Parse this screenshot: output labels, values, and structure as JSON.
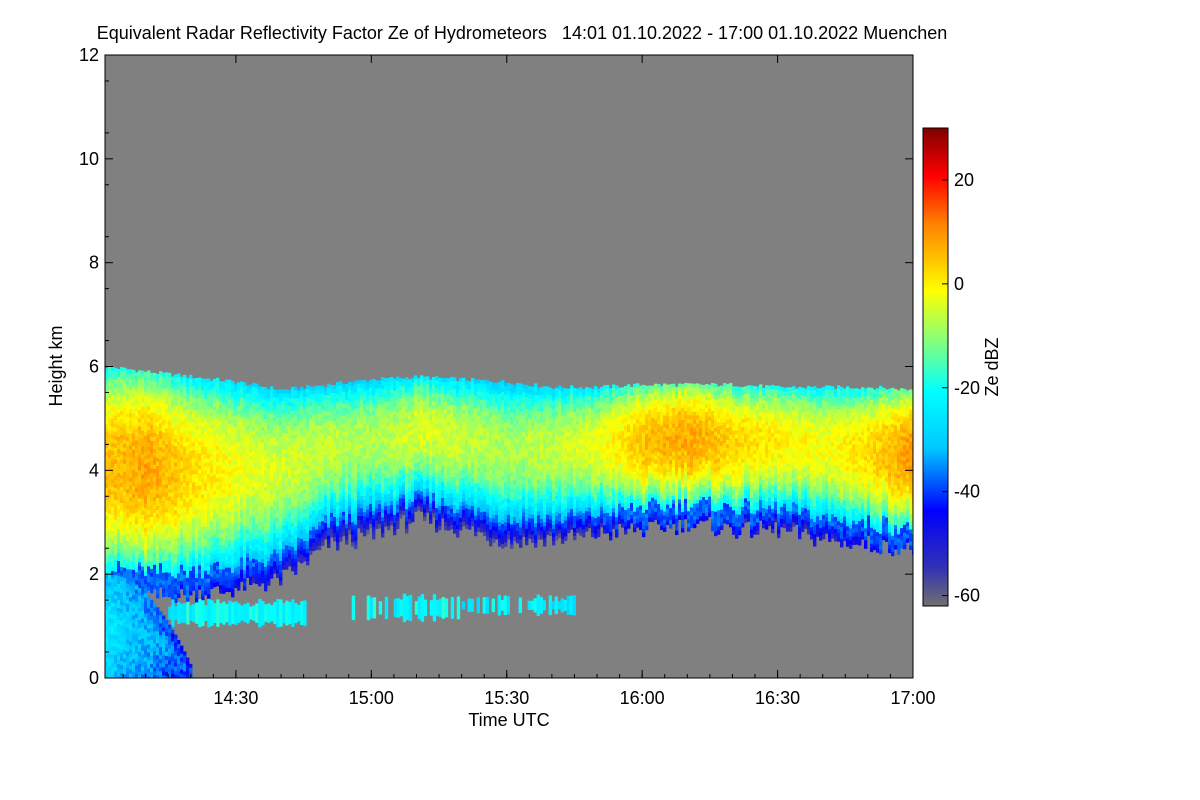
{
  "chart_data": {
    "type": "heatmap",
    "title": "Equivalent Radar Reflectivity Factor Ze of Hydrometeors   14:01 01.10.2022 - 17:00 01.10.2022 Muenchen",
    "xlabel": "Time UTC",
    "ylabel": "Height km",
    "xlim": [
      "14:01",
      "17:00"
    ],
    "ylim": [
      0,
      12
    ],
    "x_ticks": [
      "14:30",
      "15:00",
      "15:30",
      "16:00",
      "16:30",
      "17:00"
    ],
    "y_ticks": [
      "0",
      "2",
      "4",
      "6",
      "8",
      "10",
      "12"
    ],
    "colorbar": {
      "label": "Ze dBZ",
      "range": [
        -62,
        30
      ],
      "ticks": [
        "20",
        "0",
        "-20",
        "-40",
        "-60"
      ]
    },
    "colors": {
      "no_signal": "#808080",
      "low": "#3232b4",
      "high": "#800000"
    },
    "main_layer": {
      "description_free": true,
      "times": [
        "14:01",
        "14:10",
        "14:20",
        "14:30",
        "14:40",
        "14:50",
        "15:00",
        "15:10",
        "15:20",
        "15:30",
        "15:40",
        "15:50",
        "16:00",
        "16:10",
        "16:20",
        "16:30",
        "16:40",
        "16:50",
        "17:00"
      ],
      "top_km": [
        6.0,
        5.9,
        5.8,
        5.7,
        5.55,
        5.65,
        5.75,
        5.8,
        5.75,
        5.7,
        5.6,
        5.6,
        5.65,
        5.65,
        5.65,
        5.6,
        5.6,
        5.6,
        5.55
      ],
      "base_km": [
        1.7,
        1.6,
        1.65,
        1.75,
        1.95,
        2.6,
        2.8,
        3.1,
        2.9,
        2.65,
        2.7,
        2.8,
        2.9,
        3.0,
        2.9,
        2.9,
        2.7,
        2.6,
        2.5
      ],
      "peak_dbz": [
        5,
        8,
        2,
        -2,
        -5,
        -6,
        -8,
        -4,
        -6,
        -8,
        -6,
        -3,
        5,
        8,
        3,
        0,
        -2,
        2,
        10
      ]
    },
    "low_layer": {
      "segments": [
        {
          "start": "14:15",
          "end": "14:45",
          "base_km": 1.05,
          "top_km": 1.45,
          "peak_dbz": -22
        },
        {
          "start": "14:55",
          "end": "15:20",
          "base_km": 1.15,
          "top_km": 1.55,
          "peak_dbz": -22
        },
        {
          "start": "15:20",
          "end": "15:45",
          "base_km": 1.25,
          "top_km": 1.55,
          "peak_dbz": -24
        }
      ]
    },
    "precip_shaft": {
      "start": "14:01",
      "end": "14:20",
      "top_km": 2.0,
      "peak_dbz": -25
    }
  }
}
